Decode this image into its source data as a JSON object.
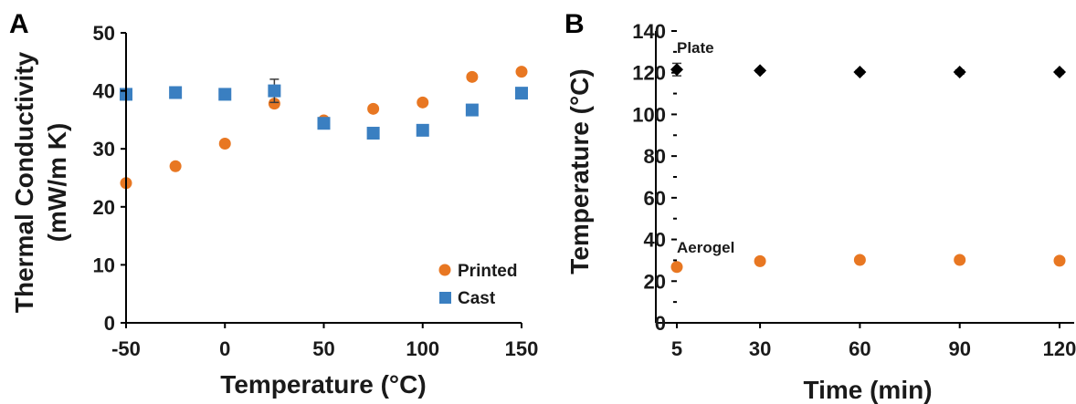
{
  "chart_data": [
    {
      "panel": "A",
      "type": "scatter",
      "xlabel": "Temperature (°C)",
      "ylabel_line1": "Thermal Conductivity",
      "ylabel_line2": "(mW/m K)",
      "xlim": [
        -50,
        150
      ],
      "ylim": [
        0,
        50
      ],
      "xticks": [
        -50,
        0,
        50,
        100,
        150
      ],
      "yticks": [
        0,
        10,
        20,
        30,
        40,
        50
      ],
      "grid": false,
      "legend_position": "bottom-right",
      "series": [
        {
          "name": "Printed",
          "marker": "circle",
          "color": "#E87722",
          "points": [
            {
              "x": -50,
              "y": 24.1,
              "err": 0.4
            },
            {
              "x": -25,
              "y": 27.0,
              "err": 0.4
            },
            {
              "x": 0,
              "y": 30.9,
              "err": 0.3
            },
            {
              "x": 25,
              "y": 37.8,
              "err": 0.6
            },
            {
              "x": 50,
              "y": 34.9,
              "err": 0.4
            },
            {
              "x": 75,
              "y": 36.9,
              "err": 0.4
            },
            {
              "x": 100,
              "y": 38.0,
              "err": 0.4
            },
            {
              "x": 125,
              "y": 42.4,
              "err": 0.5
            },
            {
              "x": 150,
              "y": 43.3,
              "err": 0.4
            }
          ]
        },
        {
          "name": "Cast",
          "marker": "square",
          "color": "#3A7FC1",
          "points": [
            {
              "x": -50,
              "y": 39.4,
              "err": 0.3
            },
            {
              "x": -25,
              "y": 39.7,
              "err": 0.3
            },
            {
              "x": 0,
              "y": 39.4,
              "err": 0.3
            },
            {
              "x": 25,
              "y": 40.0,
              "err": 2.0
            },
            {
              "x": 50,
              "y": 34.4,
              "err": 0.4
            },
            {
              "x": 75,
              "y": 32.7,
              "err": 0.3
            },
            {
              "x": 100,
              "y": 33.2,
              "err": 0.3
            },
            {
              "x": 125,
              "y": 36.7,
              "err": 0.3
            },
            {
              "x": 150,
              "y": 39.6,
              "err": 0.3
            }
          ]
        }
      ]
    },
    {
      "panel": "B",
      "type": "scatter",
      "xlabel": "Time (min)",
      "ylabel": "Temperature (°C)",
      "xlim": [
        5,
        120
      ],
      "ylim": [
        0,
        140
      ],
      "xticks": [
        5,
        30,
        60,
        90,
        120
      ],
      "yticks": [
        0,
        20,
        40,
        60,
        80,
        100,
        120,
        140
      ],
      "grid": false,
      "series": [
        {
          "name": "Plate",
          "marker": "diamond",
          "color": "#000000",
          "points": [
            {
              "x": 5,
              "y": 121.5,
              "err": 3.0
            },
            {
              "x": 30,
              "y": 121.0,
              "err": 0.8
            },
            {
              "x": 60,
              "y": 120.3,
              "err": 0.8
            },
            {
              "x": 90,
              "y": 120.3,
              "err": 1.0
            },
            {
              "x": 120,
              "y": 120.3,
              "err": 0.8
            }
          ]
        },
        {
          "name": "Aerogel",
          "marker": "circle",
          "color": "#E87722",
          "points": [
            {
              "x": 5,
              "y": 26.8,
              "err": 0.8
            },
            {
              "x": 30,
              "y": 29.6,
              "err": 0.8
            },
            {
              "x": 60,
              "y": 30.2,
              "err": 1.0
            },
            {
              "x": 90,
              "y": 30.2,
              "err": 1.0
            },
            {
              "x": 120,
              "y": 29.8,
              "err": 0.8
            }
          ]
        }
      ]
    }
  ]
}
